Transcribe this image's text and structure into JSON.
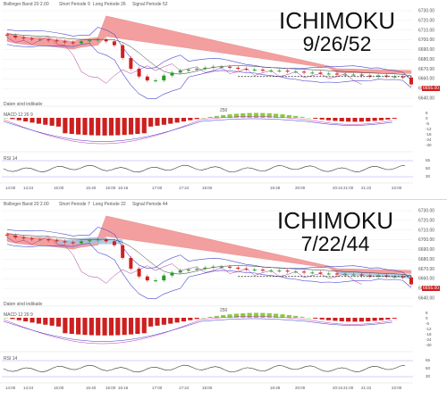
{
  "panels": [
    {
      "overlay": {
        "line1": "ICHIMOKU",
        "line2": "9/26/52"
      },
      "header": {
        "bb": "Bollinger Band 20 2.00",
        "short": "Short Periode 9",
        "long": "Long Periode 26",
        "signal": "Signal Periode 52"
      },
      "price_ticks": [
        "6730.00",
        "6720.00",
        "6710.00",
        "6700.00",
        "6690.00",
        "6680.00",
        "6670.00",
        "6660.00",
        "6650.00",
        "6640.00"
      ],
      "last_price": "6656.00",
      "info": "Daten sind indikativ",
      "macd": {
        "label": "MACD 12 26 9",
        "ticks": [
          "6",
          "0",
          "-6",
          "-12",
          "-18",
          "-24",
          "-30"
        ],
        "mid": "250"
      },
      "rsi": {
        "label": "RSI 14",
        "ticks": [
          "65",
          "50",
          "30"
        ]
      },
      "time_ticks": [
        "14:00",
        "14:24",
        "15:00",
        "15:40",
        "16:00",
        "16:16",
        "17:00",
        "17:24",
        "18:00",
        "19:28",
        "20:00",
        "20:44",
        "21:00",
        "21:22",
        "22:00"
      ]
    },
    {
      "overlay": {
        "line1": "ICHIMOKU",
        "line2": "7/22/44"
      },
      "header": {
        "bb": "Bollinger Band 20 2.00",
        "short": "Short Periode 7",
        "long": "Long Periode 22",
        "signal": "Signal Periode 44"
      },
      "price_ticks": [
        "6730.00",
        "6720.00",
        "6710.00",
        "6700.00",
        "6690.00",
        "6680.00",
        "6670.00",
        "6660.00",
        "6650.00",
        "6640.00"
      ],
      "last_price": "6656.00",
      "info": "Daten sind indikativ",
      "macd": {
        "label": "MACD 12 26 9",
        "ticks": [
          "6",
          "0",
          "-6",
          "-12",
          "-18",
          "-24",
          "-30"
        ],
        "mid": "250"
      },
      "rsi": {
        "label": "RSI 14",
        "ticks": [
          "65",
          "50",
          "30"
        ]
      },
      "time_ticks": [
        "14:00",
        "14:24",
        "15:00",
        "15:40",
        "16:00",
        "16:16",
        "17:00",
        "17:24",
        "18:00",
        "19:28",
        "20:00",
        "20:44",
        "21:00",
        "21:22",
        "22:00"
      ]
    }
  ],
  "colors": {
    "cloud_bearish": "#f08080",
    "cloud_bullish": "#9fc4e6",
    "bollinger": "#4a4ad0",
    "candle_up": "#2a9a2a",
    "candle_down": "#d02020",
    "macd_pos": "#88cc44",
    "macd_neg": "#cc2020",
    "rsi": "#333333"
  },
  "chart_data": [
    {
      "type": "line",
      "title": "ICHIMOKU 9/26/52",
      "ylim": [
        6640,
        6735
      ],
      "series": [
        {
          "name": "Price",
          "values": [
            6706,
            6704,
            6703,
            6702,
            6702,
            6701,
            6700,
            6699,
            6698,
            6700,
            6701,
            6702,
            6700,
            6696,
            6683,
            6672,
            6664,
            6660,
            6660,
            6665,
            6668,
            6670,
            6671,
            6672,
            6673,
            6674,
            6674,
            6673,
            6672,
            6671,
            6671,
            6670,
            6670,
            6670,
            6669,
            6669,
            6668,
            6668,
            6667,
            6667,
            6666,
            6666,
            6666,
            6665,
            6664,
            6665,
            6664,
            6664,
            6663,
            6656
          ]
        }
      ]
    },
    {
      "type": "line",
      "title": "ICHIMOKU 7/22/44",
      "ylim": [
        6640,
        6735
      ],
      "series": [
        {
          "name": "Price",
          "values": [
            6706,
            6704,
            6703,
            6702,
            6702,
            6701,
            6700,
            6699,
            6698,
            6700,
            6701,
            6702,
            6700,
            6696,
            6683,
            6672,
            6664,
            6660,
            6660,
            6665,
            6668,
            6670,
            6671,
            6672,
            6673,
            6674,
            6674,
            6673,
            6672,
            6671,
            6671,
            6670,
            6670,
            6670,
            6669,
            6669,
            6668,
            6668,
            6667,
            6667,
            6666,
            6666,
            6666,
            6665,
            6664,
            6665,
            6664,
            6664,
            6663,
            6656
          ]
        }
      ]
    }
  ]
}
